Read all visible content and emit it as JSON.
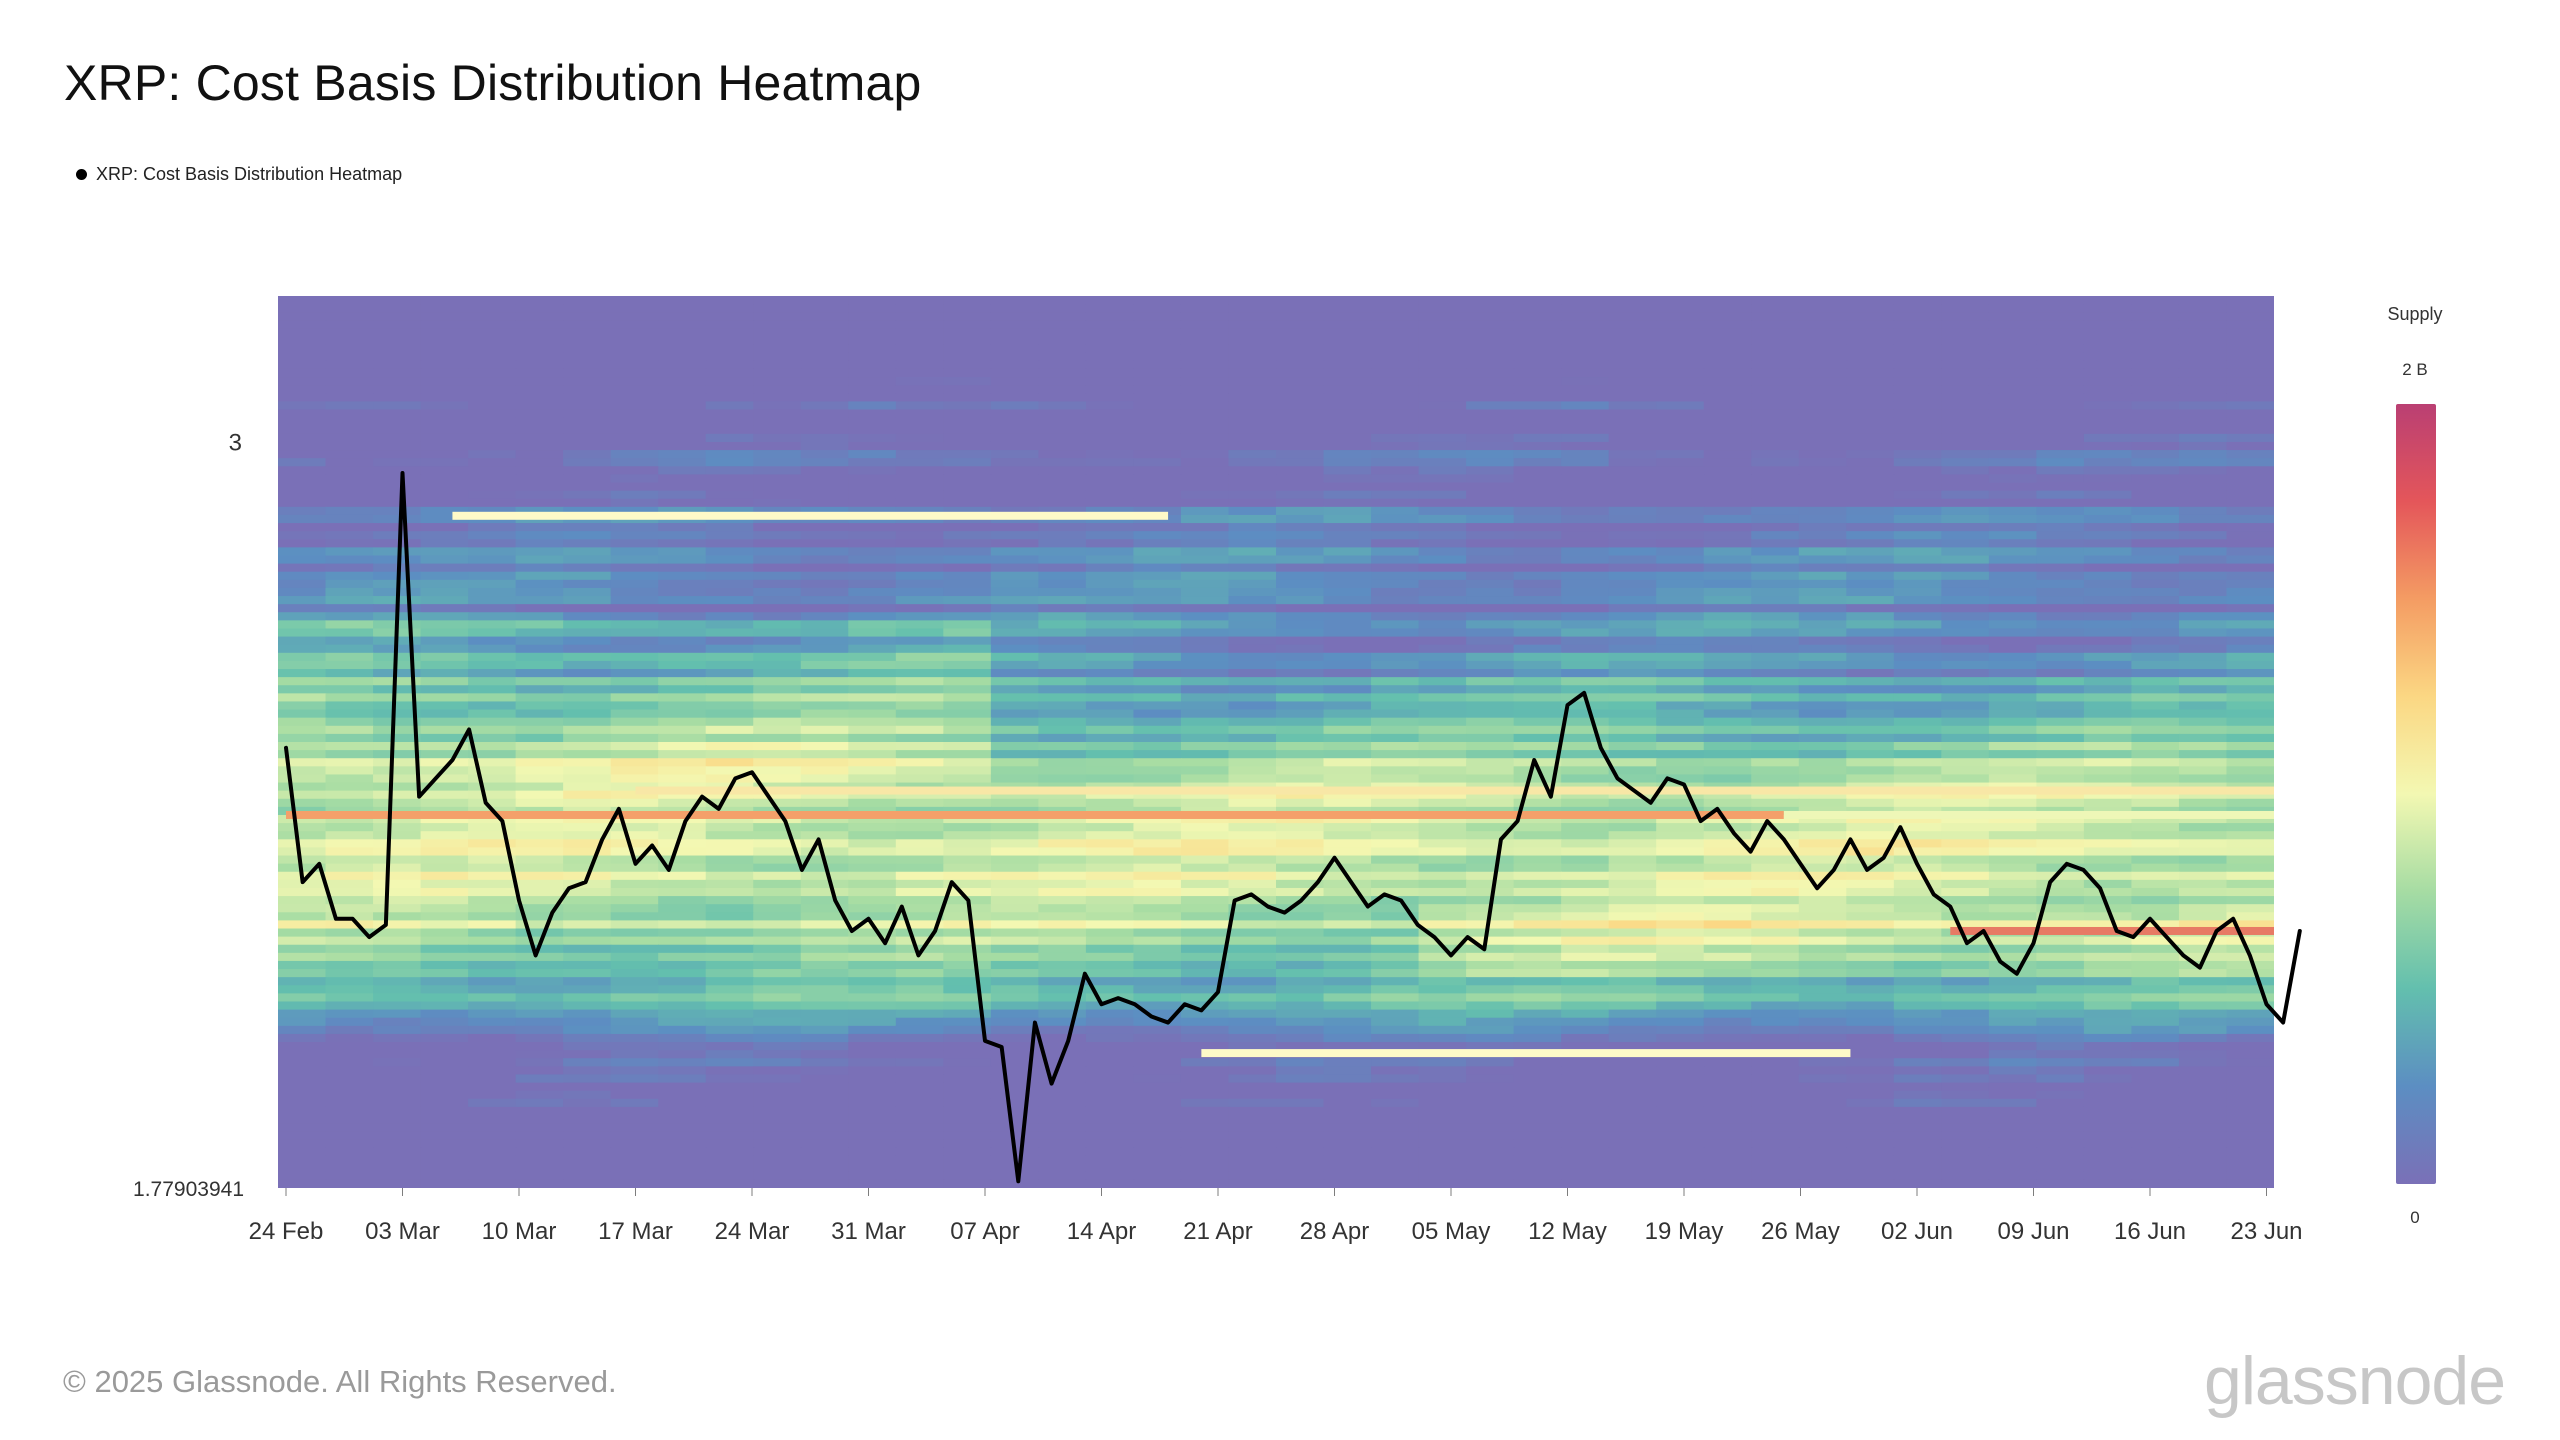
{
  "title": "XRP: Cost Basis Distribution Heatmap",
  "legend": {
    "series_label": "XRP: Cost Basis Distribution Heatmap",
    "marker_color": "#000000"
  },
  "colorbar": {
    "title": "Supply",
    "max_label": "2 B",
    "min_label": "0",
    "stops": [
      "#7a70b7",
      "#5c8ec2",
      "#63bfae",
      "#a6dca3",
      "#f3f8b2",
      "#fbd783",
      "#f49c63",
      "#e4565a",
      "#ba3f73"
    ]
  },
  "footer": {
    "copyright": "© 2025 Glassnode. All Rights Reserved.",
    "brand": "glassnode"
  },
  "chart_data": {
    "type": "heatmap",
    "title": "XRP: Cost Basis Distribution Heatmap",
    "xlabel": "",
    "ylabel": "",
    "grid": false,
    "legend_position": "top-left",
    "x_tick_labels": [
      "24 Feb",
      "03 Mar",
      "10 Mar",
      "17 Mar",
      "24 Mar",
      "31 Mar",
      "07 Apr",
      "14 Apr",
      "21 Apr",
      "28 Apr",
      "05 May",
      "12 May",
      "19 May",
      "26 May",
      "02 Jun",
      "09 Jun",
      "16 Jun",
      "23 Jun"
    ],
    "y_tick_labels": [
      "3",
      "1.77903941"
    ],
    "y_tick_values": [
      3,
      1.77903941
    ],
    "ylim": [
      1.77903941,
      3.24
    ],
    "background_color": "#7a72b6",
    "price_series": {
      "name": "XRP: Cost Basis Distribution Heatmap",
      "color": "#000000",
      "x_day_start": 0,
      "values": [
        2.5,
        2.28,
        2.31,
        2.22,
        2.22,
        2.19,
        2.21,
        2.95,
        2.42,
        2.45,
        2.48,
        2.53,
        2.41,
        2.38,
        2.25,
        2.16,
        2.23,
        2.27,
        2.28,
        2.35,
        2.4,
        2.31,
        2.34,
        2.3,
        2.38,
        2.42,
        2.4,
        2.45,
        2.46,
        2.42,
        2.38,
        2.3,
        2.35,
        2.25,
        2.2,
        2.22,
        2.18,
        2.24,
        2.16,
        2.2,
        2.28,
        2.25,
        2.02,
        2.01,
        1.79,
        2.05,
        1.95,
        2.02,
        2.13,
        2.08,
        2.09,
        2.08,
        2.06,
        2.05,
        2.08,
        2.07,
        2.1,
        2.25,
        2.26,
        2.24,
        2.23,
        2.25,
        2.28,
        2.32,
        2.28,
        2.24,
        2.26,
        2.25,
        2.21,
        2.19,
        2.16,
        2.19,
        2.17,
        2.35,
        2.38,
        2.48,
        2.42,
        2.57,
        2.59,
        2.5,
        2.45,
        2.43,
        2.41,
        2.45,
        2.44,
        2.38,
        2.4,
        2.36,
        2.33,
        2.38,
        2.35,
        2.31,
        2.27,
        2.3,
        2.35,
        2.3,
        2.32,
        2.37,
        2.31,
        2.26,
        2.24,
        2.18,
        2.2,
        2.15,
        2.13,
        2.18,
        2.28,
        2.31,
        2.3,
        2.27,
        2.2,
        2.19,
        2.22,
        2.19,
        2.16,
        2.14,
        2.2,
        2.22,
        2.16,
        2.08,
        2.05,
        2.2
      ]
    },
    "dense_bands": [
      {
        "y": 2.88,
        "x_start_day": 10,
        "x_end_day": 53,
        "supply": "high",
        "color": "#fefac8"
      },
      {
        "y": 2.39,
        "x_start_day": 0,
        "x_end_day": 90,
        "supply": "very high",
        "color": "#f4a06a"
      },
      {
        "y": 2.39,
        "x_start_day": 90,
        "x_end_day": 172,
        "supply": "high",
        "color": "#eef7b7"
      },
      {
        "y": 2.43,
        "x_start_day": 21,
        "x_end_day": 136,
        "supply": "high",
        "color": "#f8e7a6"
      },
      {
        "y": 2.2,
        "x_start_day": 100,
        "x_end_day": 172,
        "supply": "highest",
        "color": "#e77a64"
      },
      {
        "y": 2.0,
        "x_start_day": 55,
        "x_end_day": 94,
        "supply": "high",
        "color": "#fefac8"
      }
    ]
  }
}
